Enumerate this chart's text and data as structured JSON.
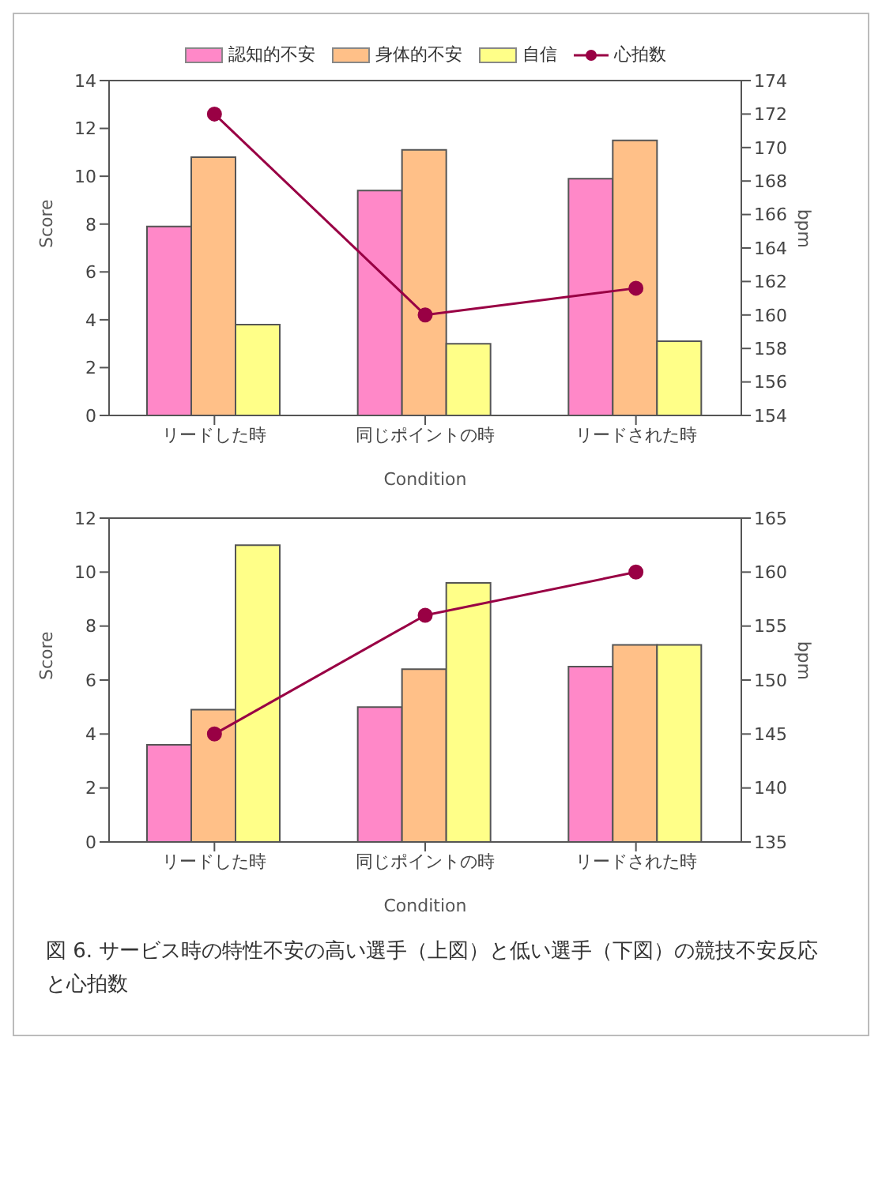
{
  "chart_data": [
    {
      "type": "bar",
      "categories": [
        "リードした時",
        "同じポイントの時",
        "リードされた時"
      ],
      "xlabel": "Condition",
      "ylabel": "Score",
      "y2label": "bpm",
      "ylim": [
        0,
        14
      ],
      "yticks": [
        0,
        2,
        4,
        6,
        8,
        10,
        12,
        14
      ],
      "y2lim": [
        154,
        174
      ],
      "y2ticks": [
        154,
        156,
        158,
        160,
        162,
        164,
        166,
        168,
        170,
        172,
        174
      ],
      "legend": "top",
      "marker": "circle",
      "series": [
        {
          "name": "認知的不安",
          "color": "#ff88c8",
          "values": [
            7.9,
            9.4,
            9.9
          ]
        },
        {
          "name": "身体的不安",
          "color": "#ffc088",
          "values": [
            10.8,
            11.1,
            11.5
          ]
        },
        {
          "name": "自信",
          "color": "#ffff88",
          "values": [
            3.8,
            3.0,
            3.1
          ]
        },
        {
          "name": "心拍数",
          "type": "line",
          "axis": "y2",
          "color": "#990044",
          "values": [
            172,
            160,
            161.6
          ]
        }
      ]
    },
    {
      "type": "bar",
      "categories": [
        "リードした時",
        "同じポイントの時",
        "リードされた時"
      ],
      "xlabel": "Condition",
      "ylabel": "Score",
      "y2label": "bpm",
      "ylim": [
        0,
        12
      ],
      "yticks": [
        0,
        2,
        4,
        6,
        8,
        10,
        12
      ],
      "y2lim": [
        135,
        165
      ],
      "y2ticks": [
        135,
        140,
        145,
        150,
        155,
        160,
        165
      ],
      "marker": "circle",
      "annotations": [
        "図 6. サービス時の特性不安の高い選手（上図）と低い選手（下図）の競技不安反応と心拍数"
      ],
      "series": [
        {
          "color": "#ff88c8",
          "values": [
            3.6,
            5.0,
            6.5
          ]
        },
        {
          "color": "#ffc088",
          "values": [
            4.9,
            6.4,
            7.3
          ]
        },
        {
          "color": "#ffff88",
          "values": [
            11.0,
            9.6,
            7.3
          ]
        },
        {
          "type": "line",
          "axis": "y2",
          "color": "#990044",
          "values": [
            145,
            156,
            160
          ]
        }
      ]
    }
  ]
}
